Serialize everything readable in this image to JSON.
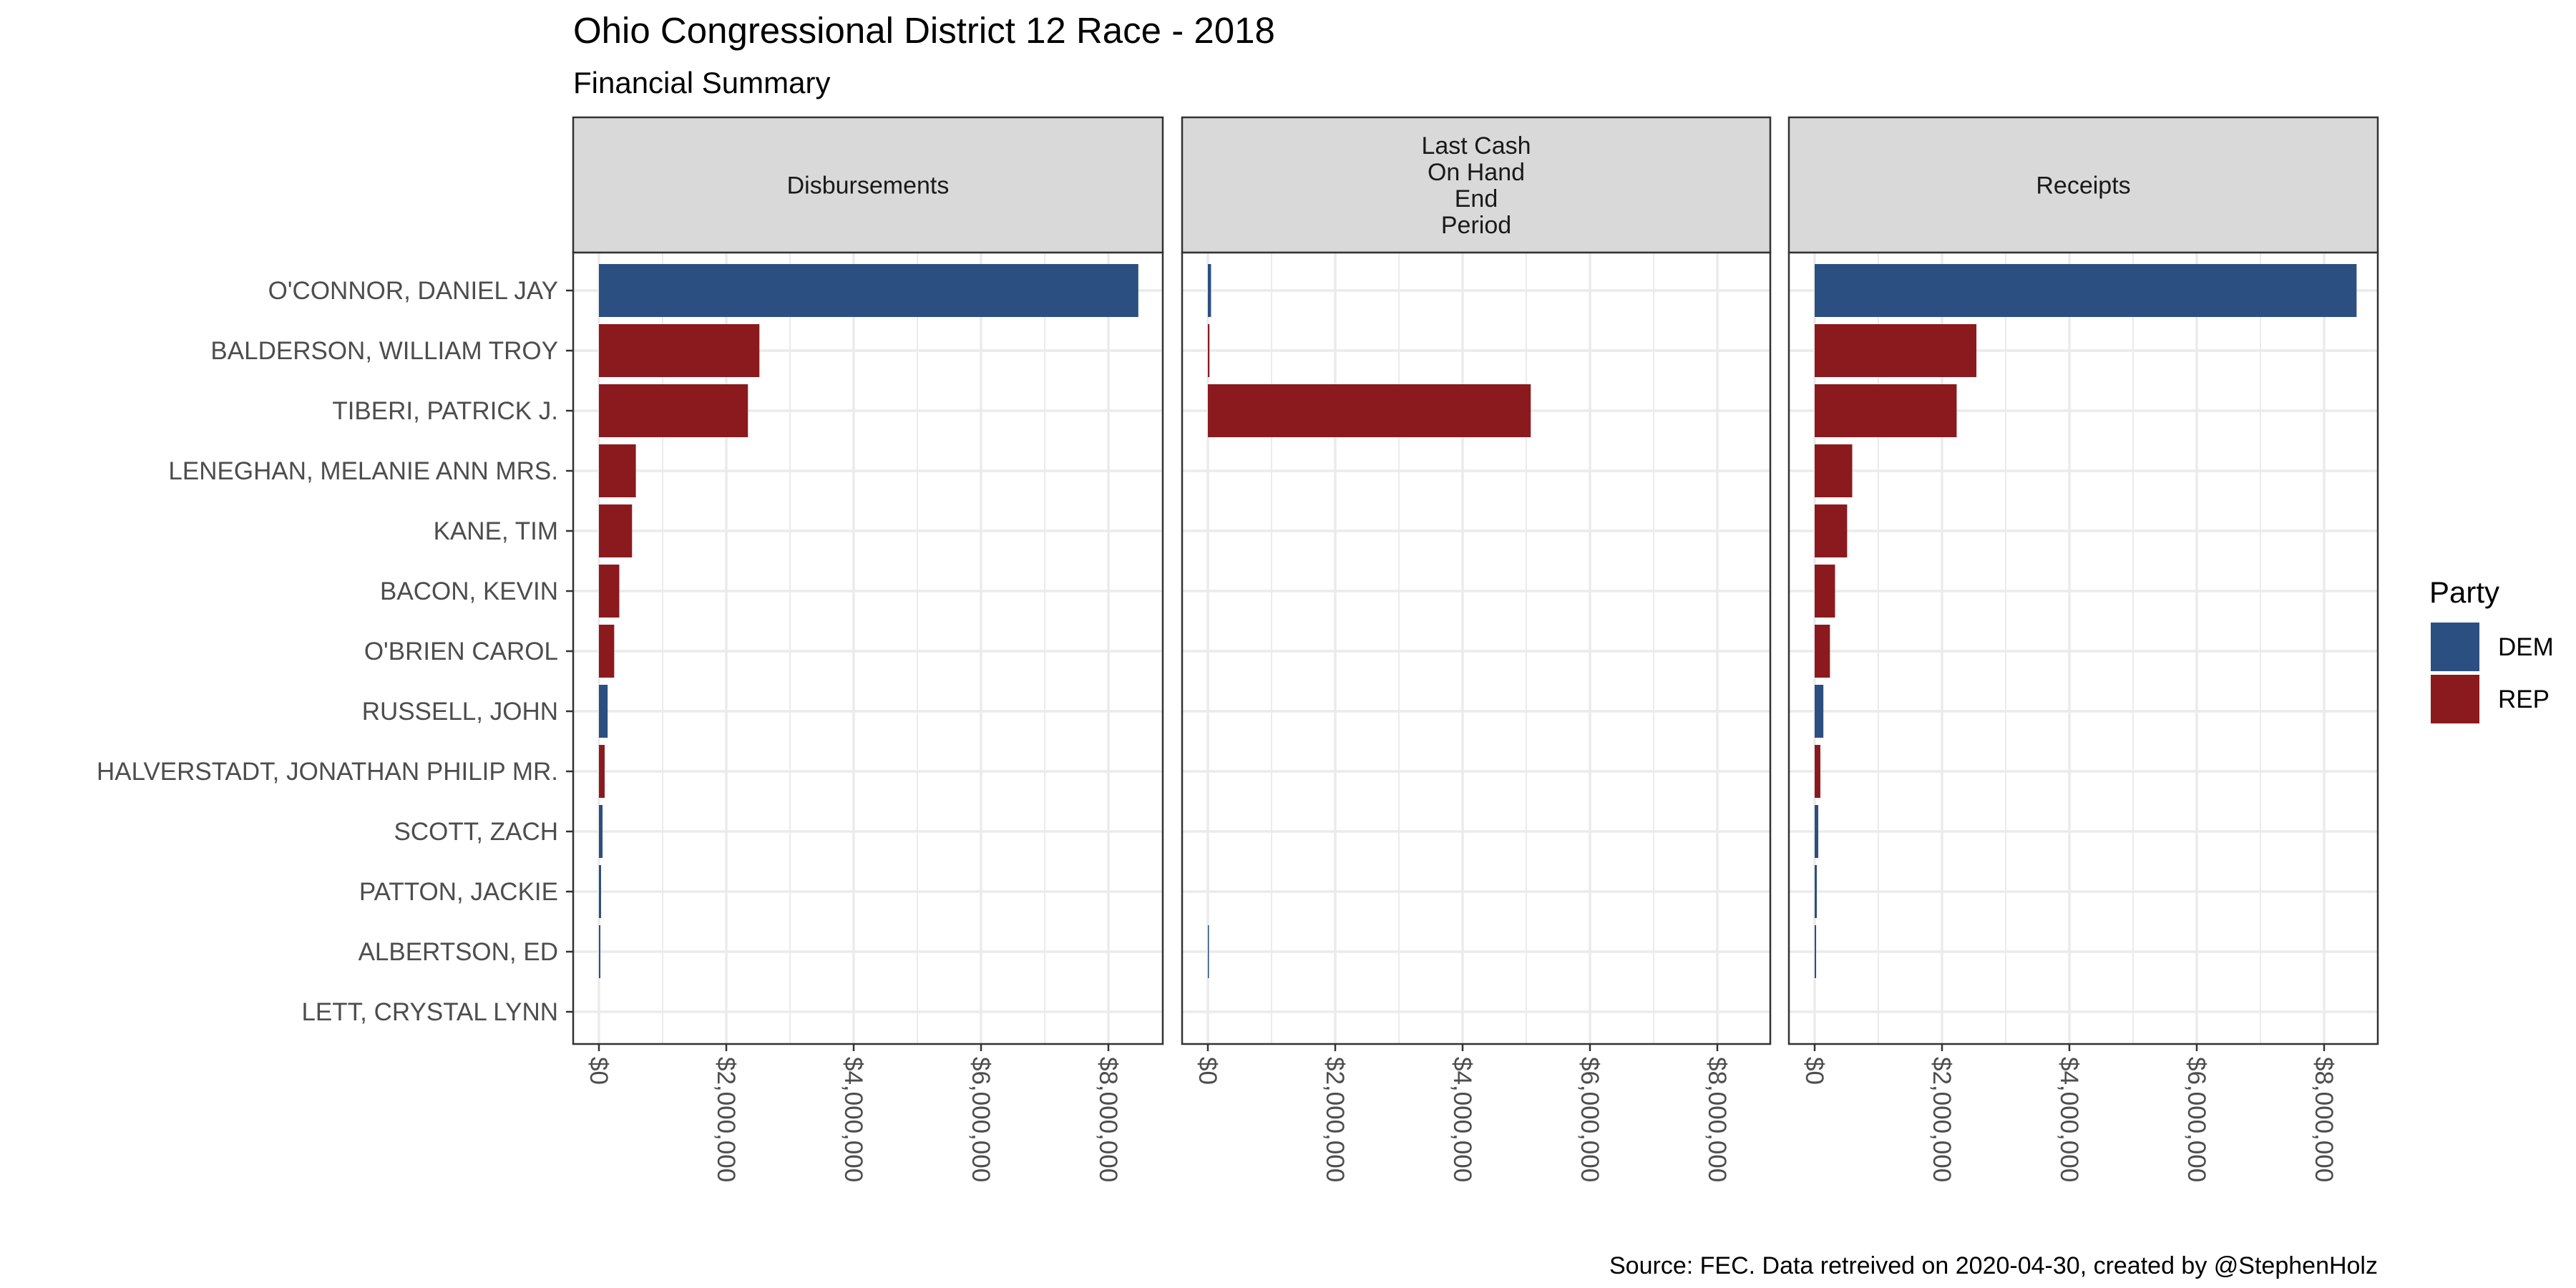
{
  "chart_data": {
    "type": "bar",
    "orientation": "horizontal",
    "title": "Ohio Congressional District 12 Race - 2018",
    "subtitle": "Financial Summary",
    "caption": "Source: FEC. Data retreived on 2020-04-30, created by @StephenHolz",
    "xlabel": "",
    "ylabel": "",
    "xlim": [
      0,
      8900000
    ],
    "x_ticks": [
      0,
      2000000,
      4000000,
      6000000,
      8000000
    ],
    "x_tick_labels": [
      "$0",
      "$2,000,000",
      "$4,000,000",
      "$6,000,000",
      "$8,000,000"
    ],
    "grid": true,
    "legend": {
      "title": "Party",
      "placement": "right",
      "entries": [
        {
          "label": "DEM",
          "color": "#2c4f82"
        },
        {
          "label": "REP",
          "color": "#8b1a1e"
        }
      ]
    },
    "categories": [
      "O'CONNOR, DANIEL JAY",
      "BALDERSON, WILLIAM TROY",
      "TIBERI, PATRICK J.",
      "LENEGHAN, MELANIE ANN MRS.",
      "KANE, TIM",
      "BACON, KEVIN",
      "O'BRIEN CAROL",
      "RUSSELL, JOHN",
      "HALVERSTADT, JONATHAN PHILIP MR.",
      "SCOTT, ZACH",
      "PATTON, JACKIE",
      "ALBERTSON, ED",
      "LETT, CRYSTAL LYNN"
    ],
    "party": [
      "DEM",
      "REP",
      "REP",
      "REP",
      "REP",
      "REP",
      "REP",
      "DEM",
      "REP",
      "DEM",
      "DEM",
      "DEM",
      "DEM"
    ],
    "facets": [
      {
        "label": "Disbursements",
        "values": [
          8470000,
          2520000,
          2340000,
          580000,
          520000,
          320000,
          240000,
          137000,
          90000,
          57000,
          34000,
          23000,
          0
        ]
      },
      {
        "label": "Last Cash\nOn Hand\nEnd\nPeriod",
        "values": [
          50000,
          25000,
          5070000,
          0,
          0,
          0,
          0,
          0,
          0,
          0,
          0,
          10000,
          0
        ]
      },
      {
        "label": "Receipts",
        "values": [
          8510000,
          2540000,
          2230000,
          590000,
          510000,
          320000,
          240000,
          137000,
          90000,
          57000,
          34000,
          23000,
          0
        ]
      }
    ]
  }
}
